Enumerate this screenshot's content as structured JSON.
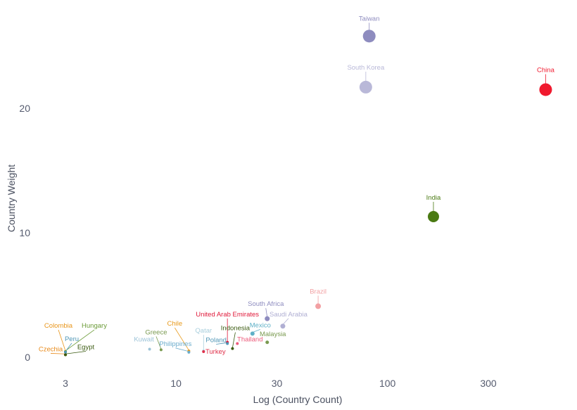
{
  "chart_data": {
    "type": "scatter",
    "xlabel": "Log (Country Count)",
    "ylabel": "Country Weight",
    "x_scale": "log",
    "xlim": [
      2.3,
      620
    ],
    "ylim": [
      -0.7,
      28.5
    ],
    "x_ticks": [
      {
        "value": 3,
        "label": "3"
      },
      {
        "value": 10,
        "label": "10"
      },
      {
        "value": 30,
        "label": "30"
      },
      {
        "value": 100,
        "label": "100"
      },
      {
        "value": 300,
        "label": "300"
      }
    ],
    "y_ticks": [
      {
        "value": 0,
        "label": "0"
      },
      {
        "value": 10,
        "label": "10"
      },
      {
        "value": 20,
        "label": "20"
      }
    ],
    "grid": false,
    "points": [
      {
        "name": "Taiwan",
        "x": 82,
        "y": 25.8,
        "color": "#8e8cbf",
        "size": 9
      },
      {
        "name": "South Korea",
        "x": 79,
        "y": 21.7,
        "color": "#b9b8d8",
        "size": 9
      },
      {
        "name": "China",
        "x": 560,
        "y": 21.5,
        "color": "#f0192e",
        "size": 9
      },
      {
        "name": "India",
        "x": 165,
        "y": 11.3,
        "color": "#4a7a13",
        "size": 8
      },
      {
        "name": "Brazil",
        "x": 47,
        "y": 4.1,
        "color": "#f2a0a3",
        "size": 4
      },
      {
        "name": "South Africa",
        "x": 27,
        "y": 3.1,
        "color": "#8e8cbf",
        "size": 3.5
      },
      {
        "name": "Saudi Arabia",
        "x": 32,
        "y": 2.5,
        "color": "#b0afd3",
        "size": 3.5
      },
      {
        "name": "United Arab Emirates",
        "x": 17.5,
        "y": 1.2,
        "color": "#e0193a",
        "size": 2
      },
      {
        "name": "Indonesia",
        "x": 18.5,
        "y": 0.7,
        "color": "#3a5a10",
        "size": 2
      },
      {
        "name": "Mexico",
        "x": 23,
        "y": 1.9,
        "color": "#5eb0c7",
        "size": 3
      },
      {
        "name": "Thailand",
        "x": 19.5,
        "y": 1.1,
        "color": "#ec5a7a",
        "size": 2
      },
      {
        "name": "Malaysia",
        "x": 27,
        "y": 1.2,
        "color": "#7a9a50",
        "size": 2.5
      },
      {
        "name": "Qatar",
        "x": 13.5,
        "y": 0.5,
        "color": "#a9cfdd",
        "size": 2
      },
      {
        "name": "Poland",
        "x": 17.5,
        "y": 1.1,
        "color": "#4f96b6",
        "size": 2
      },
      {
        "name": "Turkey",
        "x": 13.5,
        "y": 0.45,
        "color": "#e0304a",
        "size": 2
      },
      {
        "name": "Chile",
        "x": 11.5,
        "y": 0.5,
        "color": "#e89a1a",
        "size": 2
      },
      {
        "name": "Greece",
        "x": 8.5,
        "y": 0.6,
        "color": "#7a9a50",
        "size": 2
      },
      {
        "name": "Philippines",
        "x": 11.5,
        "y": 0.4,
        "color": "#6aaccc",
        "size": 2
      },
      {
        "name": "Kuwait",
        "x": 7.5,
        "y": 0.65,
        "color": "#9cc3d8",
        "size": 2
      },
      {
        "name": "Colombia",
        "x": 3,
        "y": 0.45,
        "color": "#e8951a",
        "size": 2
      },
      {
        "name": "Hungary",
        "x": 3,
        "y": 0.45,
        "color": "#6a9a36",
        "size": 2
      },
      {
        "name": "Peru",
        "x": 3,
        "y": 0.4,
        "color": "#4f96b6",
        "size": 2
      },
      {
        "name": "Czechia",
        "x": 3,
        "y": 0.2,
        "color": "#e88a1a",
        "size": 2
      },
      {
        "name": "Egypt",
        "x": 3,
        "y": 0.2,
        "color": "#3a5a10",
        "size": 2
      }
    ]
  }
}
